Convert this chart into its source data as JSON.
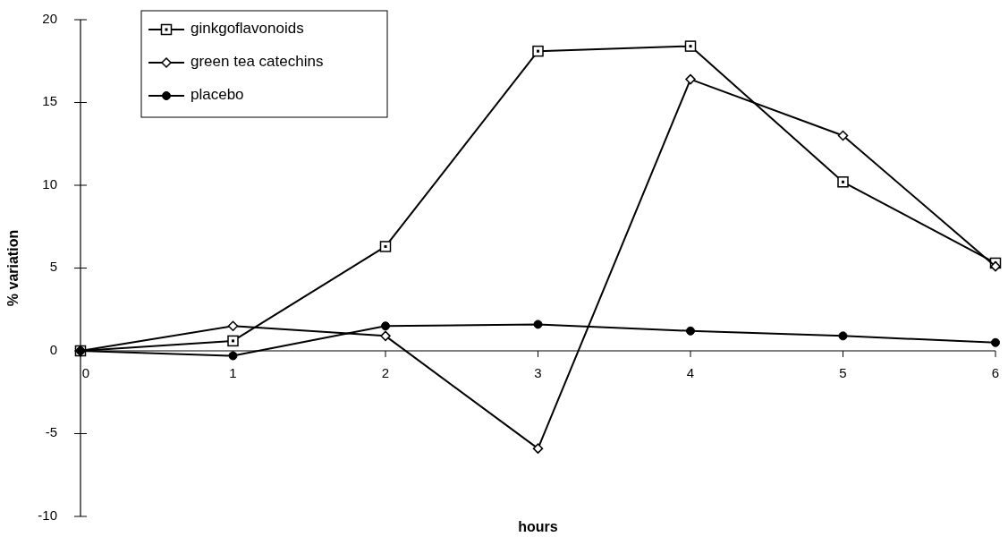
{
  "chart_data": {
    "type": "line",
    "xlabel": "hours",
    "ylabel": "% variation",
    "x": [
      0,
      1,
      2,
      3,
      4,
      5,
      6
    ],
    "xlim": [
      0,
      6
    ],
    "xticks": [
      0,
      1,
      2,
      3,
      4,
      5,
      6
    ],
    "ylim": [
      -10,
      20
    ],
    "yticks": [
      -10,
      -5,
      0,
      5,
      10,
      15,
      20
    ],
    "grid": false,
    "legend": "top left",
    "line_style": "solid",
    "series": [
      {
        "name": "ginkgoflavonoids",
        "color": "#000000",
        "marker": "square",
        "values": [
          0,
          0.6,
          6.3,
          18.1,
          18.4,
          10.2,
          5.3
        ]
      },
      {
        "name": "green tea catechins",
        "color": "#000000",
        "marker": "diamond",
        "values": [
          0,
          1.5,
          0.9,
          -5.9,
          16.4,
          13.0,
          5.1
        ]
      },
      {
        "name": "placebo",
        "color": "#000000",
        "marker": "circle",
        "values": [
          0,
          -0.3,
          1.5,
          1.6,
          1.2,
          0.9,
          0.5
        ]
      }
    ]
  }
}
